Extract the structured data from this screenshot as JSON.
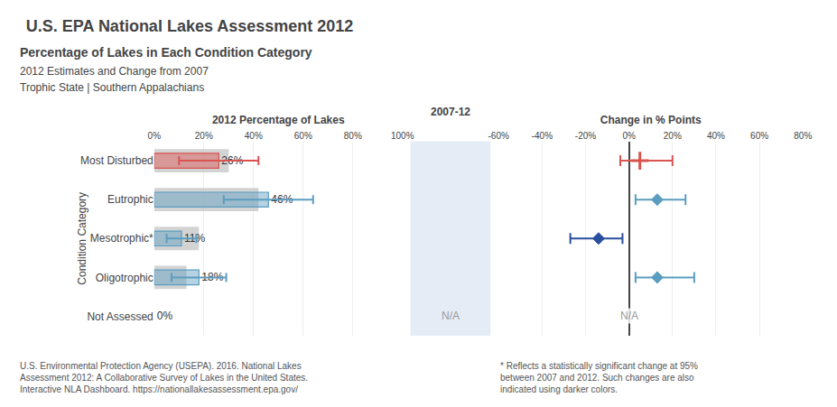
{
  "chart_data": [
    {
      "type": "bar",
      "orientation": "horizontal",
      "title": "U.S. EPA National Lakes Assessment 2012",
      "subtitle": [
        "Percentage of Lakes in Each Condition Category",
        "2012 Estimates and Change from 2007",
        "Trophic State | Southern Appalachians"
      ],
      "xlabel": "2012 Percentage of Lakes",
      "ylabel": "Condition Category",
      "categories": [
        "Most Disturbed",
        "Eutrophic",
        "Mesotrophic*",
        "Oligotrophic",
        "Not Assessed"
      ],
      "series": [
        {
          "color": "#c0c0c0",
          "values": [
            30,
            42,
            18,
            13,
            0
          ]
        },
        {
          "colors": [
            "#d9534f",
            "#5b9dc0",
            "#5b9dc0",
            "#5b9dc0",
            null
          ],
          "values": [
            26,
            46,
            11,
            18,
            0
          ],
          "value_labels": [
            "26%",
            "46%",
            "11%",
            "18%",
            "0%"
          ],
          "error_low": [
            10,
            28,
            5,
            7,
            0
          ],
          "error_high": [
            42,
            64,
            17,
            29,
            0
          ]
        }
      ],
      "data_labels": true,
      "xlim": [
        0,
        100
      ],
      "xticks": [
        {
          "value": 0,
          "label": "0%"
        },
        {
          "value": 20,
          "label": "20%"
        },
        {
          "value": 40,
          "label": "40%"
        },
        {
          "value": 60,
          "label": "60%"
        },
        {
          "value": 80,
          "label": "80%"
        },
        {
          "value": 100,
          "label": "100%"
        }
      ],
      "grid": true,
      "annotations": [
        {
          "text": "2007-12"
        },
        {
          "text": "N/A",
          "category": "Not Assessed"
        }
      ],
      "source": [
        "U.S. Environmental Protection Agency (USEPA). 2016. National Lakes",
        "Assessment 2012: A Collaborative Survey of Lakes in the United States.",
        "Interactive NLA Dashboard. https://nationallakesassessment.epa.gov/"
      ],
      "footnote": [
        "* Reflects a statistically significant change at 95%",
        "between 2007 and 2012. Such changes are also",
        "indicated using darker colors."
      ]
    },
    {
      "type": "scatter",
      "xlabel": "Change in % Points",
      "categories": [
        "Most Disturbed",
        "Eutrophic",
        "Mesotrophic*",
        "Oligotrophic",
        "Not Assessed"
      ],
      "series": [
        {
          "marker": "cross",
          "color": "#d9534f",
          "values": [
            5,
            null,
            null,
            null,
            null
          ],
          "error_low": [
            -4,
            null,
            null,
            null,
            null
          ],
          "error_high": [
            20,
            null,
            null,
            null,
            null
          ]
        },
        {
          "marker": "diamond",
          "colors": [
            null,
            "#5b9dc0",
            "#2a4f9e",
            "#5b9dc0",
            null
          ],
          "values": [
            null,
            13,
            -14,
            13,
            null
          ],
          "error_low": [
            null,
            3,
            -27,
            3,
            null
          ],
          "error_high": [
            null,
            26,
            -3,
            30,
            null
          ]
        }
      ],
      "xlim": [
        -60,
        80
      ],
      "xticks": [
        {
          "value": -60,
          "label": "-60%"
        },
        {
          "value": -40,
          "label": "-40%"
        },
        {
          "value": -20,
          "label": "-20%"
        },
        {
          "value": 0,
          "label": "0%"
        },
        {
          "value": 20,
          "label": "20%"
        },
        {
          "value": 40,
          "label": "40%"
        },
        {
          "value": 60,
          "label": "60%"
        },
        {
          "value": 80,
          "label": "80%"
        }
      ],
      "grid": true,
      "annotations": [
        {
          "text": "N/A",
          "x": 0,
          "category": "Not Assessed"
        }
      ]
    }
  ]
}
